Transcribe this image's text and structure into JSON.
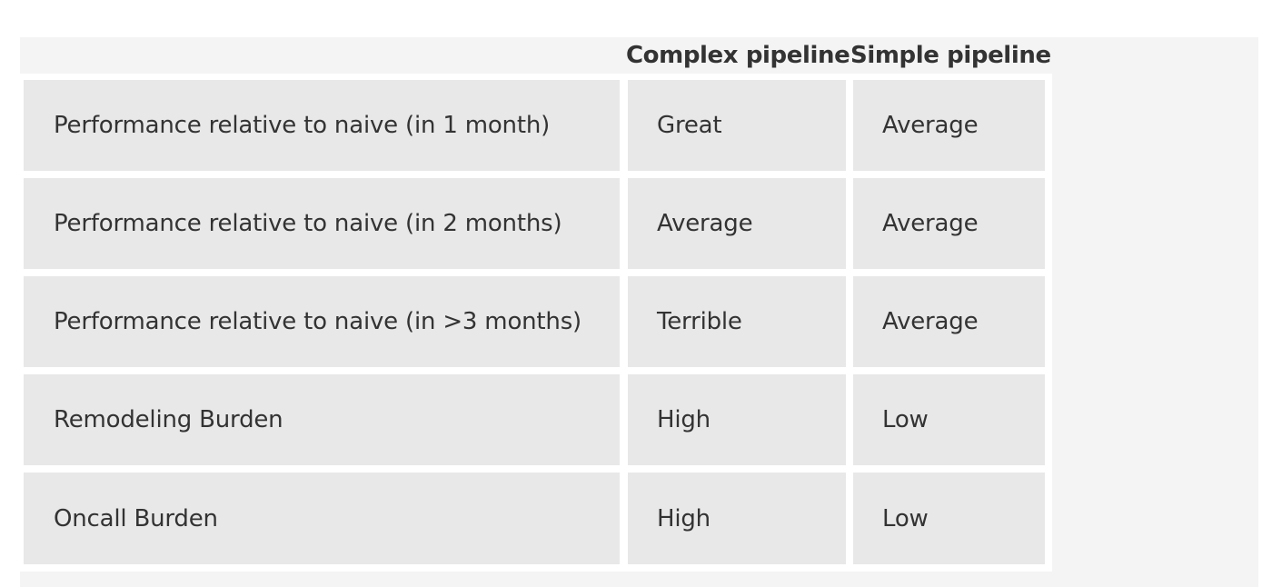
{
  "table": {
    "headers": [
      "",
      "Complex pipeline",
      "Simple pipeline"
    ],
    "rows": [
      {
        "label": "Performance relative to naive (in 1 month)",
        "complex": "Great",
        "simple": "Average"
      },
      {
        "label": "Performance relative to naive (in 2 months)",
        "complex": "Average",
        "simple": "Average"
      },
      {
        "label": "Performance relative to naive (in >3 months)",
        "complex": "Terrible",
        "simple": "Average"
      },
      {
        "label": "Remodeling Burden",
        "complex": "High",
        "simple": "Low"
      },
      {
        "label": "Oncall Burden",
        "complex": "High",
        "simple": "Low"
      }
    ]
  },
  "colors": {
    "cell_background": "#e8e8e8",
    "panel_background": "#f4f4f4",
    "text": "#333333"
  }
}
